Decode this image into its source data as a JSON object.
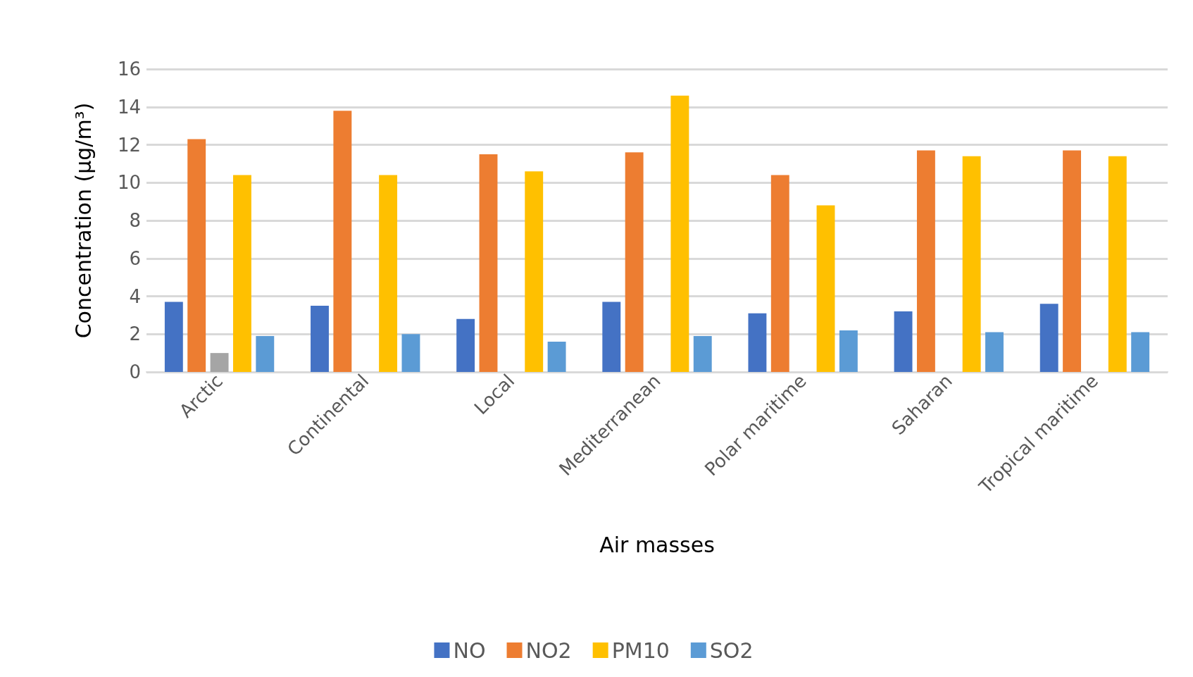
{
  "chart_data": {
    "type": "bar",
    "xlabel": "Air masses",
    "ylabel": "Concentration (µg/m³)",
    "categories": [
      "Arctic",
      "Continental",
      "Local",
      "Mediterranean",
      "Polar maritime",
      "Saharan",
      "Tropical maritime"
    ],
    "series": [
      {
        "name": "NO",
        "color": "#4472c4",
        "values": [
          3.7,
          3.5,
          2.8,
          3.7,
          3.1,
          3.2,
          3.6
        ]
      },
      {
        "name": "NO2",
        "color": "#ed7d31",
        "values": [
          12.3,
          13.8,
          11.5,
          11.6,
          10.4,
          11.7,
          11.7
        ]
      },
      {
        "color": "#a5a5a5",
        "values": [
          1.0,
          null,
          null,
          null,
          null,
          null,
          null
        ]
      },
      {
        "name": "PM10",
        "color": "#ffc000",
        "values": [
          10.4,
          10.4,
          10.6,
          14.6,
          8.8,
          11.4,
          11.4
        ]
      },
      {
        "name": "SO2",
        "color": "#5b9bd5",
        "values": [
          1.9,
          2.0,
          1.6,
          1.9,
          2.2,
          2.1,
          2.1
        ]
      }
    ],
    "ylim": [
      0,
      16
    ],
    "yticks": [
      0,
      2,
      4,
      6,
      8,
      10,
      12,
      14,
      16
    ],
    "grid": "y",
    "legend": "bottom"
  }
}
